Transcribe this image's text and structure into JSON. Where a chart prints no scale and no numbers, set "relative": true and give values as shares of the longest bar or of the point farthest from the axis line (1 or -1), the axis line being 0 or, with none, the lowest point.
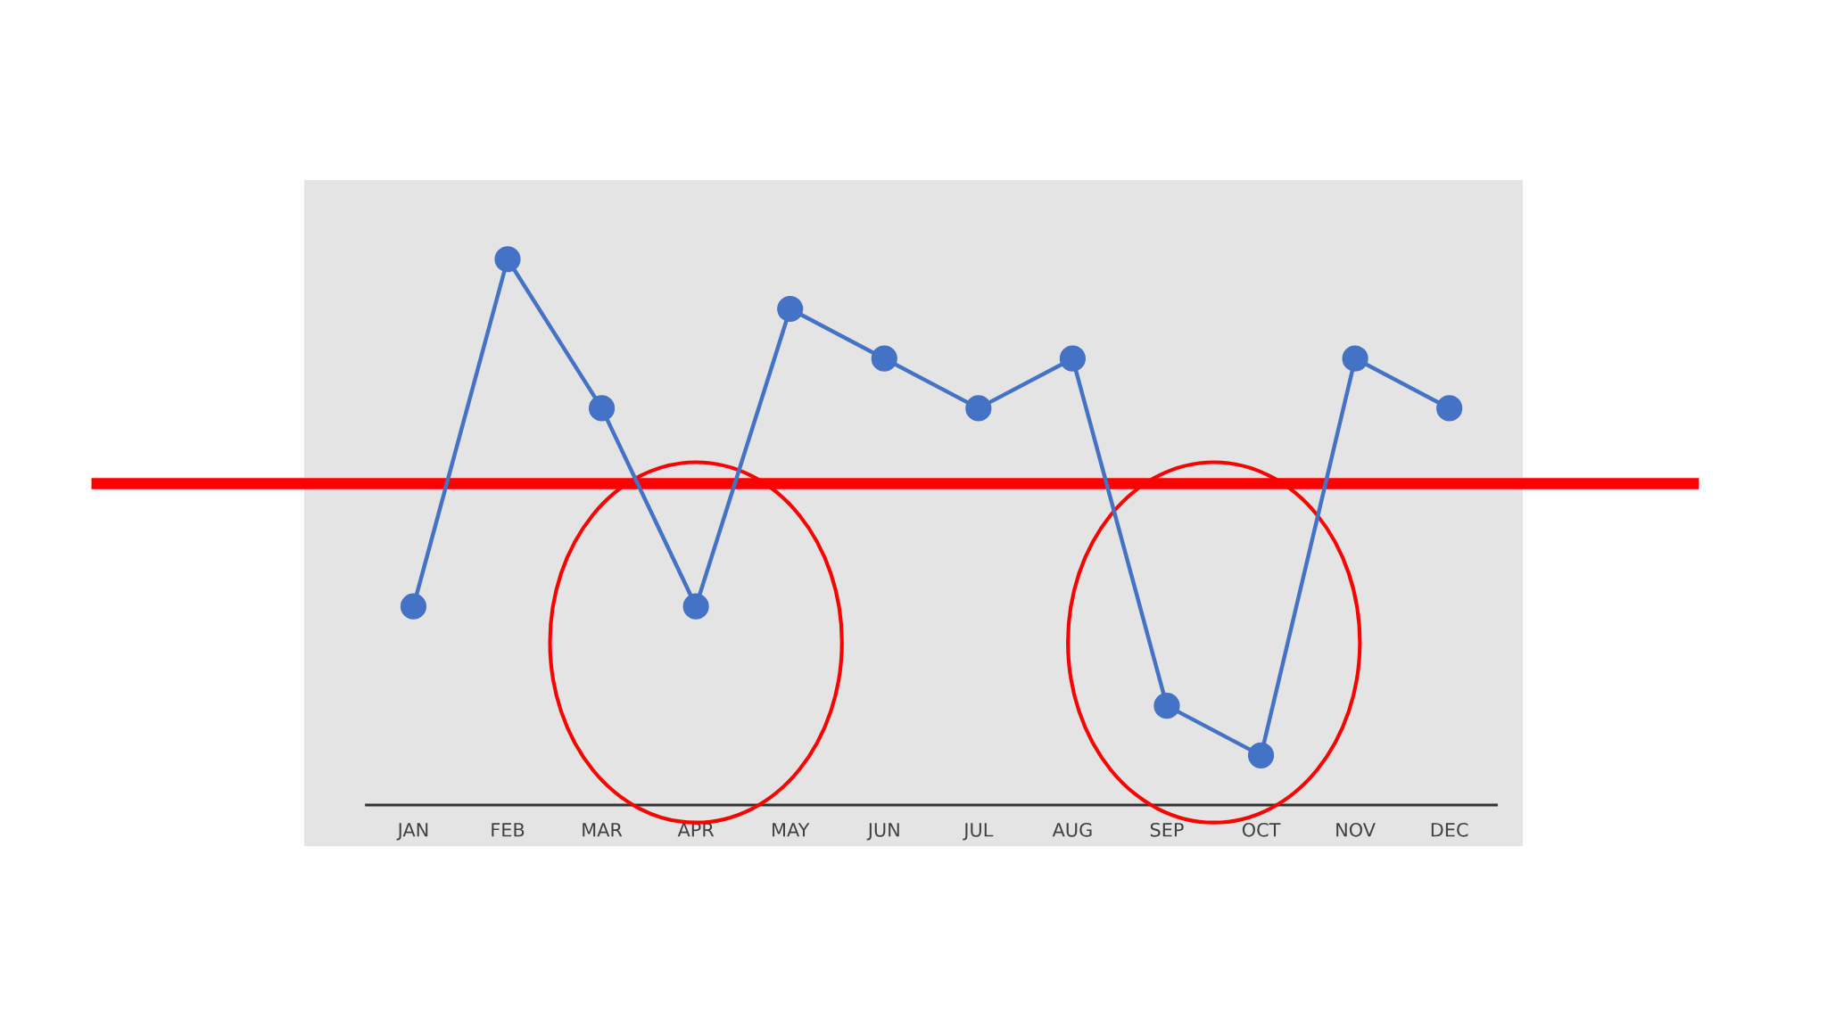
{
  "chart_data": {
    "type": "line",
    "relative": true,
    "categories": [
      "JAN",
      "FEB",
      "MAR",
      "APR",
      "MAY",
      "JUN",
      "JUL",
      "AUG",
      "SEP",
      "OCT",
      "NOV",
      "DEC"
    ],
    "series": [
      {
        "color": "#4472c4",
        "values": [
          0.364,
          1,
          0.727,
          0.364,
          0.909,
          0.818,
          0.727,
          0.818,
          0.182,
          0.091,
          0.818,
          0.727
        ]
      }
    ],
    "marker": "circle",
    "line_style": "solid",
    "ref_lines": [
      {
        "axis": "y",
        "value": 0.589,
        "color": "#ff0000"
      }
    ]
  }
}
